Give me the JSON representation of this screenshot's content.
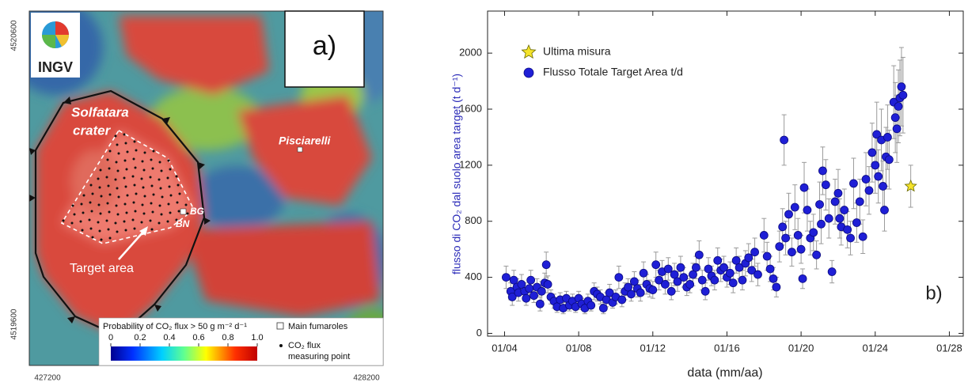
{
  "map": {
    "logo": "INGV",
    "panel_label": "a)",
    "crater_label": [
      "Solfatara",
      "crater"
    ],
    "place_label": "Pisciarelli",
    "vent_labels": [
      "BG",
      "BN"
    ],
    "target_label": "Target area",
    "northing_labels": [
      "4520600",
      "4519600"
    ],
    "easting_labels": [
      "427200",
      "428200"
    ],
    "colorbar": {
      "title": "Probability of CO₂ flux > 50 g m⁻² d⁻¹",
      "ticks": [
        0,
        0.2,
        0.4,
        0.6,
        0.8,
        {
          "value": 1,
          "label": "1.0"
        }
      ],
      "lim": [
        0,
        1
      ]
    },
    "legend": {
      "fumaroles": "Main fumaroles",
      "points": [
        "CO₂ flux",
        "measuring point"
      ]
    }
  },
  "chart_data": {
    "type": "scatter",
    "panel_label": "b)",
    "x_label": "data (mm/aa)",
    "y_label": "flusso di CO₂ dal suolo area target (t d⁻¹)",
    "xlim": [
      "02/03",
      "10/28"
    ],
    "xticks": [
      "01/04",
      "01/08",
      "01/12",
      "01/16",
      "01/20",
      "01/24",
      "01/28"
    ],
    "ylim": [
      -20,
      2300
    ],
    "yticks": [
      0,
      400,
      800,
      1200,
      1600,
      2000
    ],
    "legend": "upper left",
    "series": [
      {
        "name": "Ultima misura",
        "color": "#f5e32a",
        "marker": "star",
        "x": [
          "12/25"
        ],
        "values": [
          1050
        ],
        "errors": [
          150
        ]
      },
      {
        "name": "Flusso Totale Target Area t/d",
        "color": "#1f1fd6",
        "marker": "circle",
        "x": [
          "02/04",
          "05/04",
          "06/04",
          "07/04",
          "09/04",
          "10/04",
          "12/04",
          "02/05",
          "03/05",
          "05/05",
          "06/05",
          "08/05",
          "10/05",
          "12/05",
          "01/06",
          "03/06",
          "04/06",
          "05/06",
          "07/06",
          "09/06",
          "11/06",
          "01/07",
          "03/07",
          "05/07",
          "07/07",
          "09/07",
          "11/07",
          "01/08",
          "03/08",
          "05/08",
          "07/08",
          "09/08",
          "11/08",
          "01/09",
          "03/09",
          "05/09",
          "07/09",
          "09/09",
          "11/09",
          "01/10",
          "03/10",
          "05/10",
          "07/10",
          "09/10",
          "11/10",
          "01/11",
          "03/11",
          "05/11",
          "07/11",
          "09/11",
          "11/11",
          "01/12",
          "03/12",
          "05/12",
          "07/12",
          "09/12",
          "11/12",
          "01/13",
          "03/13",
          "05/13",
          "07/13",
          "09/13",
          "11/13",
          "01/14",
          "03/14",
          "05/14",
          "07/14",
          "09/14",
          "11/14",
          "01/15",
          "03/15",
          "05/15",
          "07/15",
          "09/15",
          "11/15",
          "01/16",
          "03/16",
          "05/16",
          "07/16",
          "09/16",
          "11/16",
          "01/17",
          "03/17",
          "05/17",
          "07/17",
          "09/17",
          "01/18",
          "03/18",
          "05/18",
          "07/18",
          "09/18",
          "11/18",
          "01/19",
          "02/19",
          "03/19",
          "05/19",
          "07/19",
          "09/19",
          "11/19",
          "01/20",
          "02/20",
          "03/20",
          "05/20",
          "07/20",
          "09/20",
          "11/20",
          "01/21",
          "02/21",
          "03/21",
          "05/21",
          "07/21",
          "09/21",
          "11/21",
          "01/22",
          "02/22",
          "03/22",
          "05/22",
          "07/22",
          "09/22",
          "11/22",
          "01/23",
          "03/23",
          "05/23",
          "07/23",
          "09/23",
          "11/23",
          "01/24",
          "02/24",
          "03/24",
          "05/24",
          "06/24",
          "07/24",
          "08/24",
          "09/24",
          "10/24",
          "01/25",
          "02/25",
          "03/25",
          "04/25",
          "05/25",
          "06/25",
          "07/25"
        ],
        "values": [
          400,
          300,
          260,
          380,
          330,
          290,
          350,
          300,
          250,
          320,
          380,
          270,
          330,
          210,
          300,
          360,
          490,
          350,
          260,
          230,
          190,
          240,
          180,
          250,
          200,
          230,
          190,
          250,
          210,
          180,
          230,
          200,
          300,
          280,
          260,
          180,
          240,
          290,
          220,
          260,
          400,
          240,
          300,
          330,
          280,
          370,
          320,
          290,
          430,
          350,
          320,
          310,
          490,
          380,
          440,
          350,
          460,
          300,
          420,
          370,
          470,
          400,
          330,
          350,
          420,
          470,
          560,
          380,
          300,
          460,
          410,
          380,
          520,
          450,
          470,
          400,
          430,
          360,
          520,
          470,
          380,
          500,
          540,
          450,
          580,
          420,
          700,
          550,
          460,
          390,
          330,
          620,
          760,
          1380,
          680,
          850,
          580,
          900,
          700,
          600,
          390,
          1040,
          880,
          680,
          720,
          560,
          920,
          780,
          1160,
          1060,
          820,
          440,
          940,
          1000,
          820,
          760,
          880,
          740,
          680,
          1070,
          790,
          940,
          690,
          1100,
          1020,
          1290,
          1200,
          1420,
          1120,
          1380,
          1050,
          880,
          1260,
          1400,
          1240,
          1650,
          1540,
          1460,
          1620,
          1680,
          1760,
          1700
        ],
        "errors": [
          80,
          60,
          60,
          70,
          60,
          60,
          70,
          60,
          50,
          60,
          70,
          50,
          60,
          50,
          70,
          70,
          90,
          60,
          50,
          50,
          40,
          50,
          40,
          50,
          40,
          50,
          40,
          50,
          40,
          40,
          50,
          40,
          60,
          50,
          50,
          40,
          50,
          60,
          40,
          50,
          80,
          50,
          60,
          60,
          50,
          70,
          60,
          60,
          80,
          70,
          60,
          60,
          90,
          70,
          80,
          70,
          80,
          60,
          80,
          70,
          80,
          70,
          60,
          60,
          80,
          80,
          100,
          70,
          60,
          80,
          70,
          70,
          90,
          80,
          80,
          70,
          80,
          70,
          90,
          80,
          70,
          90,
          100,
          80,
          100,
          80,
          120,
          100,
          90,
          80,
          70,
          110,
          130,
          180,
          120,
          150,
          100,
          160,
          120,
          100,
          70,
          180,
          150,
          120,
          130,
          100,
          160,
          140,
          170,
          180,
          140,
          80,
          160,
          170,
          140,
          130,
          150,
          130,
          120,
          180,
          140,
          160,
          120,
          190,
          170,
          210,
          200,
          230,
          190,
          220,
          180,
          150,
          210,
          230,
          210,
          260,
          250,
          240,
          260,
          270,
          280,
          270
        ]
      }
    ]
  }
}
